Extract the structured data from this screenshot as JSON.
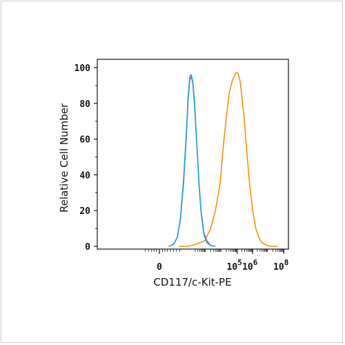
{
  "chart_data": {
    "type": "line",
    "xlabel": "CD117/c-Kit-PE",
    "ylabel": "Relative Cell Number",
    "x_scale": "biexponential",
    "xlim": [
      -4,
      8.3
    ],
    "ylim": [
      0,
      100
    ],
    "x_ticks": [
      {
        "value": 0,
        "label": "0"
      },
      {
        "value": 5,
        "label": "10",
        "exp": "5"
      },
      {
        "value": 6,
        "label": "10",
        "exp": "6"
      },
      {
        "value": 8,
        "label": "10",
        "exp": "8"
      }
    ],
    "y_ticks": [
      0,
      20,
      40,
      60,
      80,
      100
    ],
    "grid": false,
    "series": [
      {
        "color": "#ff8c00",
        "x": [
          1.25,
          1.8,
          2.3,
          2.9,
          3.3,
          3.6,
          3.9,
          4.1,
          4.3,
          4.5,
          4.7,
          4.9,
          5.05,
          5.2,
          5.3,
          5.45,
          5.6,
          5.8,
          6.0,
          6.2,
          6.4,
          6.6,
          6.8,
          7.0,
          7.3,
          7.6
        ],
        "y": [
          0,
          0,
          1,
          3,
          10,
          20,
          35,
          55,
          72,
          86,
          93,
          97,
          97,
          92,
          84,
          72,
          55,
          35,
          20,
          10,
          5,
          2,
          1,
          0.3,
          0,
          0
        ]
      },
      {
        "color": "#aa66aa",
        "x": [
          0.6,
          0.9,
          1.15,
          1.35,
          1.55,
          1.72,
          1.85,
          1.95,
          2.05,
          2.15,
          2.25,
          2.35,
          2.45,
          2.55,
          2.68,
          2.85,
          3.05,
          3.3,
          3.6
        ],
        "y": [
          0,
          1,
          5,
          15,
          35,
          60,
          82,
          93,
          95,
          91,
          80,
          65,
          50,
          35,
          20,
          8,
          3,
          0.5,
          0
        ]
      },
      {
        "color": "#1fa2e8",
        "x": [
          0.6,
          0.9,
          1.15,
          1.35,
          1.55,
          1.72,
          1.85,
          1.95,
          2.05,
          2.15,
          2.25,
          2.35,
          2.45,
          2.55,
          2.68,
          2.85,
          3.05,
          3.3,
          3.6
        ],
        "y": [
          0,
          1,
          5,
          16,
          37,
          62,
          84,
          95,
          96,
          92,
          82,
          66,
          50,
          34,
          19,
          7,
          2,
          0.5,
          0
        ]
      }
    ]
  }
}
